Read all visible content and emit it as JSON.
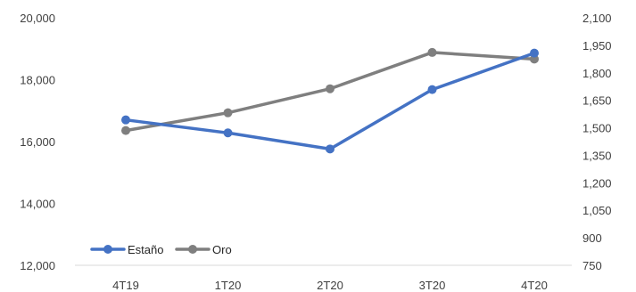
{
  "chart_data": {
    "type": "line",
    "title": "",
    "categories": [
      "4T19",
      "1T20",
      "2T20",
      "3T20",
      "4T20"
    ],
    "y_left": {
      "ylim": [
        12000,
        20000
      ],
      "ticks": [
        12000,
        14000,
        16000,
        18000,
        20000
      ],
      "tick_labels": [
        "12,000",
        "14,000",
        "16,000",
        "18,000",
        "20,000"
      ]
    },
    "y_right": {
      "ylim": [
        750,
        2100
      ],
      "ticks": [
        750,
        900,
        1050,
        1200,
        1350,
        1500,
        1650,
        1800,
        1950,
        2100
      ],
      "tick_labels": [
        "750",
        "900",
        "1,050",
        "1,200",
        "1,350",
        "1,500",
        "1,650",
        "1,800",
        "1,950",
        "2,100"
      ]
    },
    "series": [
      {
        "name": "Estaño",
        "axis": "left",
        "color": "#4472C4",
        "values": [
          16700,
          16280,
          15760,
          17680,
          18860
        ]
      },
      {
        "name": "Oro",
        "axis": "right",
        "color": "#7F7F7F",
        "values": [
          1485,
          1582,
          1713,
          1911,
          1875
        ]
      }
    ],
    "grid": false,
    "legend": "bottom-left"
  }
}
